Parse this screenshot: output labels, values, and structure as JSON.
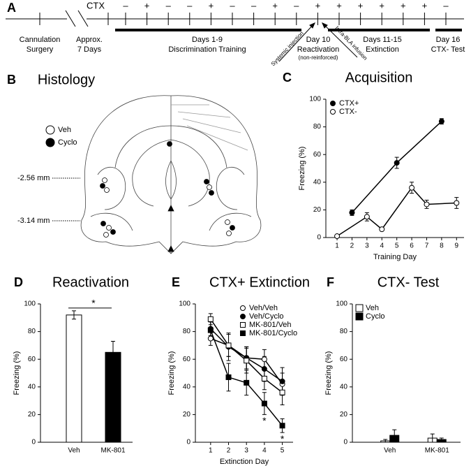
{
  "timeline": {
    "panel": "A",
    "ctx_label": "CTX",
    "ctx_signs": [
      "–",
      "+",
      "–",
      "–",
      "+",
      "–",
      "–",
      "+",
      "–",
      "+",
      "+",
      "+",
      "+",
      "+",
      "+",
      "–"
    ],
    "phases": [
      [
        "Cannulation",
        "Surgery"
      ],
      [
        "Approx.",
        "7 Days"
      ],
      [
        "Days 1-9",
        "Discrimination Training"
      ],
      [
        "Day 10",
        "Reactivation",
        "(non-reinforced)"
      ],
      [
        "Days 11-15",
        "Extinction"
      ],
      [
        "Day 16",
        "CTX- Test"
      ]
    ],
    "injections": [
      "Systemic injection",
      "Intra-BLA infusion"
    ]
  },
  "histology": {
    "panel": "B",
    "title": "Histology",
    "legend": [
      "Veh",
      "Cyclo"
    ],
    "levels": [
      "-2.56 mm",
      "-3.14 mm"
    ]
  },
  "chart_data": [
    {
      "type": "line",
      "panel": "C",
      "title": "Acquisition",
      "xlabel": "Training Day",
      "ylabel": "Freezing (%)",
      "xlim": [
        0.25,
        9.5
      ],
      "xticks": [
        1,
        2,
        3,
        4,
        5,
        6,
        7,
        8,
        9
      ],
      "ylim": [
        0,
        100
      ],
      "yticks": [
        0,
        20,
        40,
        60,
        80,
        100
      ],
      "legend": "upper-left",
      "series": [
        {
          "name": "CTX+",
          "color": "#000000",
          "marker": "filled-circle",
          "x": [
            2,
            5,
            8
          ],
          "values": [
            18,
            54,
            84
          ],
          "errors": [
            2,
            4,
            2
          ]
        },
        {
          "name": "CTX-",
          "color": "#000000",
          "marker": "open-circle",
          "x": [
            1,
            3,
            4,
            6,
            7,
            9
          ],
          "values": [
            1,
            15,
            6,
            36,
            24,
            25
          ],
          "errors": [
            1,
            3,
            1,
            4,
            3,
            4
          ]
        }
      ]
    },
    {
      "type": "bar",
      "panel": "D",
      "title": "Reactivation",
      "ylabel": "Freezing (%)",
      "categories": [
        "Veh",
        "MK-801"
      ],
      "values": [
        92,
        65
      ],
      "errors": [
        3,
        8
      ],
      "colors": [
        "#ffffff",
        "#000000"
      ],
      "ylim": [
        0,
        100
      ],
      "yticks": [
        0,
        20,
        40,
        60,
        80,
        100
      ],
      "annotation": "*"
    },
    {
      "type": "line",
      "panel": "E",
      "title": "CTX+ Extinction",
      "xlabel": "Extinction Day",
      "ylabel": "Freezing (%)",
      "x": [
        1,
        2,
        3,
        4,
        5
      ],
      "xlim": [
        0.15,
        5.6
      ],
      "xticks": [
        1,
        2,
        3,
        4,
        5
      ],
      "ylim": [
        0,
        100
      ],
      "yticks": [
        0,
        20,
        40,
        60,
        80,
        100
      ],
      "legend": "upper-right",
      "series": [
        {
          "name": "Veh/Veh",
          "color": "#000000",
          "marker": "open-circle",
          "values": [
            75,
            70,
            61,
            60,
            42
          ],
          "errors": [
            5,
            8,
            8,
            7,
            8
          ]
        },
        {
          "name": "Veh/Cyclo",
          "color": "#000000",
          "marker": "filled-circle",
          "values": [
            82,
            69,
            61,
            53,
            44
          ],
          "errors": [
            5,
            10,
            8,
            9,
            10
          ]
        },
        {
          "name": "MK-801/Veh",
          "color": "#000000",
          "marker": "open-square",
          "values": [
            89,
            70,
            59,
            46,
            36
          ],
          "errors": [
            4,
            8,
            9,
            8,
            9
          ]
        },
        {
          "name": "MK-801/Cyclo",
          "color": "#000000",
          "marker": "filled-square",
          "values": [
            81,
            47,
            43,
            28,
            12
          ],
          "errors": [
            6,
            10,
            9,
            8,
            5
          ]
        }
      ],
      "annotations": [
        "*",
        "*"
      ]
    },
    {
      "type": "grouped-bar",
      "panel": "F",
      "title": "CTX- Test",
      "ylabel": "Freezing (%)",
      "categories": [
        "Veh",
        "MK-801"
      ],
      "ylim": [
        0,
        100
      ],
      "yticks": [
        0,
        20,
        40,
        60,
        80,
        100
      ],
      "legend": "upper-left",
      "series": [
        {
          "name": "Veh",
          "color": "#ffffff",
          "values": [
            1,
            3
          ],
          "errors": [
            1,
            3
          ]
        },
        {
          "name": "Cyclo",
          "color": "#000000",
          "values": [
            5,
            2
          ],
          "errors": [
            4,
            1
          ]
        }
      ]
    }
  ]
}
